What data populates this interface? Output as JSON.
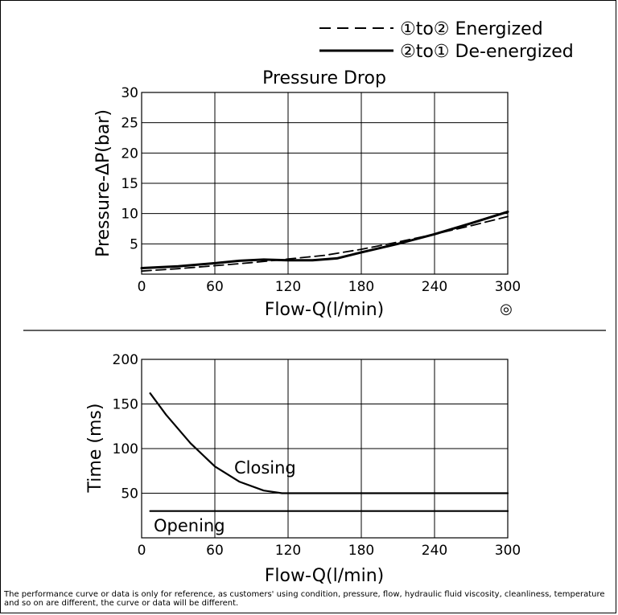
{
  "legend": [
    {
      "name": "①to② Energized",
      "dash": "dashed"
    },
    {
      "name": "②to① De-energized",
      "dash": "solid"
    }
  ],
  "symbol": "◎",
  "disclaimer": "The performance curve or data is only for reference, as customers' using condition, pressure, flow, hydraulic fluid viscosity, cleanliness, temperature and so on are different, the curve or data will be different.",
  "chart_data": [
    {
      "type": "line",
      "title": "Pressure Drop",
      "xlabel": "Flow-Q(l/min)",
      "ylabel": "Pressure-ΔP(bar)",
      "xlim": [
        0,
        300
      ],
      "ylim": [
        0,
        30
      ],
      "xticks": [
        "0",
        "60",
        "120",
        "180",
        "240",
        "300"
      ],
      "yticks": [
        "5",
        "10",
        "15",
        "20",
        "25",
        "30"
      ],
      "grid": true,
      "series": [
        {
          "name": "①to② Energized",
          "style": "dashed",
          "x": [
            0,
            30,
            60,
            90,
            120,
            150,
            180,
            210,
            240,
            270,
            300
          ],
          "y": [
            0.5,
            0.9,
            1.4,
            1.9,
            2.5,
            3.1,
            4.1,
            5.3,
            6.6,
            8.0,
            9.5
          ]
        },
        {
          "name": "②to① De-energized",
          "style": "solid",
          "x": [
            0,
            30,
            60,
            80,
            100,
            120,
            140,
            160,
            180,
            210,
            240,
            270,
            300
          ],
          "y": [
            1.0,
            1.3,
            1.8,
            2.2,
            2.4,
            2.3,
            2.3,
            2.6,
            3.6,
            5.0,
            6.6,
            8.4,
            10.3
          ]
        }
      ]
    },
    {
      "type": "line",
      "title": "",
      "xlabel": "Flow-Q(l/min)",
      "ylabel": "Time (ms)",
      "xlim": [
        0,
        300
      ],
      "ylim": [
        0,
        200
      ],
      "xticks": [
        "0",
        "60",
        "120",
        "180",
        "240",
        "300"
      ],
      "yticks": [
        "50",
        "100",
        "150",
        "200"
      ],
      "grid": true,
      "annotations": [
        "Closing",
        "Opening"
      ],
      "series": [
        {
          "name": "Closing",
          "style": "solid",
          "x": [
            7,
            20,
            40,
            60,
            80,
            100,
            115,
            120,
            180,
            240,
            300
          ],
          "y": [
            162,
            138,
            106,
            80,
            63,
            53,
            50,
            50,
            50,
            50,
            50
          ]
        },
        {
          "name": "Opening",
          "style": "solid",
          "x": [
            7,
            60,
            120,
            180,
            240,
            300
          ],
          "y": [
            30,
            30,
            30,
            30,
            30,
            30
          ]
        }
      ]
    }
  ]
}
